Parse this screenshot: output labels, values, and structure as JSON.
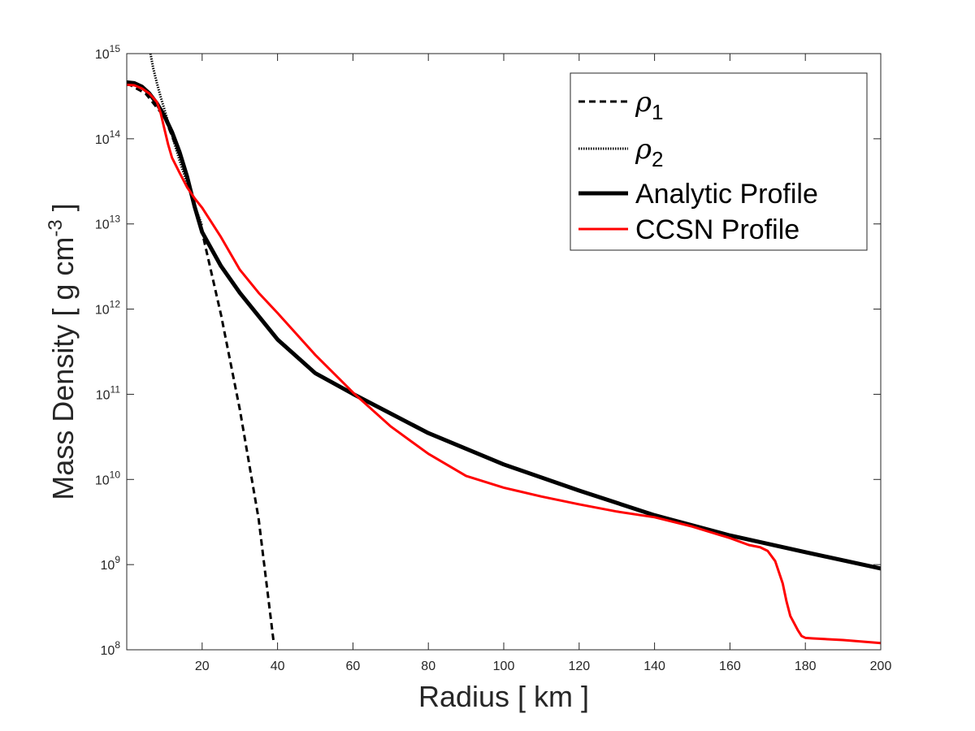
{
  "chart_data": {
    "type": "line",
    "title": "",
    "xlabel": "Radius [ km ]",
    "ylabel": "Mass Density [ g cm",
    "ylabel_sup": "-3",
    "ylabel_end": " ]",
    "xlim": [
      0,
      200
    ],
    "ylim": [
      100000000,
      1000000000000000
    ],
    "yscale": "log",
    "grid": false,
    "legend_position": "top-right",
    "x_ticks": [
      20,
      40,
      60,
      80,
      100,
      120,
      140,
      160,
      180,
      200
    ],
    "x_tick_labels": [
      "20",
      "40",
      "60",
      "80",
      "100",
      "120",
      "140",
      "160",
      "180",
      "200"
    ],
    "y_ticks": [
      {
        "base": "10",
        "exp": "8",
        "value": 100000000
      },
      {
        "base": "10",
        "exp": "9",
        "value": 1000000000
      },
      {
        "base": "10",
        "exp": "10",
        "value": 10000000000
      },
      {
        "base": "10",
        "exp": "11",
        "value": 100000000000
      },
      {
        "base": "10",
        "exp": "12",
        "value": 1000000000000
      },
      {
        "base": "10",
        "exp": "13",
        "value": 10000000000000
      },
      {
        "base": "10",
        "exp": "14",
        "value": 100000000000000
      },
      {
        "base": "10",
        "exp": "15",
        "value": 1000000000000000
      }
    ],
    "series": [
      {
        "name": "ρ",
        "name_sub": "1",
        "color": "#000000",
        "style": "dashed",
        "width": 3,
        "x": [
          0,
          5,
          10,
          15,
          20,
          25,
          30,
          35,
          39
        ],
        "y": [
          450000000000000.0,
          340000000000000.0,
          180000000000000.0,
          50000000000000.0,
          8000000000000.0,
          860000000000.0,
          66000000000.0,
          3400000000.0,
          120000000.0
        ]
      },
      {
        "name": "ρ",
        "name_sub": "2",
        "color": "#000000",
        "style": "dotted",
        "width": 3,
        "x": [
          6.3,
          7,
          8,
          9,
          10,
          12,
          14,
          16,
          18,
          20
        ],
        "y": [
          1000000000000000.0,
          680000000000000.0,
          450000000000000.0,
          310000000000000.0,
          220000000000000.0,
          110000000000000.0,
          56000000000000.0,
          30000000000000.0,
          16500000000000.0,
          9500000000000.0
        ]
      },
      {
        "name": "Analytic Profile",
        "color": "#000000",
        "style": "solid",
        "width": 5,
        "x": [
          0,
          2,
          4,
          6,
          8,
          10,
          12,
          14,
          16,
          18,
          20,
          25,
          30,
          40,
          50,
          60,
          80,
          100,
          120,
          140,
          160,
          180,
          200
        ],
        "y": [
          460000000000000.0,
          450000000000000.0,
          410000000000000.0,
          340000000000000.0,
          260000000000000.0,
          185000000000000.0,
          120000000000000.0,
          70000000000000.0,
          36000000000000.0,
          16000000000000.0,
          8000000000000.0,
          3200000000000.0,
          1550000000000.0,
          440000000000.0,
          177000000000.0,
          101000000000.0,
          35000000000.0,
          15000000000.0,
          7400000000.0,
          3800000000.0,
          2200000000.0,
          1400000000.0,
          900000000.0
        ]
      },
      {
        "name": "CCSN Profile",
        "color": "#ff0000",
        "style": "solid",
        "width": 3,
        "x": [
          0,
          2,
          4,
          6,
          8,
          9,
          10,
          11,
          12,
          14,
          16,
          18,
          20,
          25,
          30,
          35,
          40,
          50,
          60,
          70,
          80,
          90,
          100,
          110,
          120,
          130,
          140,
          150,
          160,
          165,
          168,
          170,
          172,
          174,
          175,
          176,
          178,
          179,
          180,
          182,
          190,
          200
        ],
        "y": [
          430000000000000.0,
          425000000000000.0,
          390000000000000.0,
          340000000000000.0,
          270000000000000.0,
          200000000000000.0,
          130000000000000.0,
          85000000000000.0,
          60000000000000.0,
          40000000000000.0,
          27000000000000.0,
          20000000000000.0,
          15500000000000.0,
          7000000000000.0,
          2900000000000.0,
          1550000000000.0,
          900000000000.0,
          290000000000.0,
          105000000000.0,
          42000000000.0,
          20000000000.0,
          11000000000.0,
          8000000000.0,
          6300000000.0,
          5100000000.0,
          4200000000.0,
          3600000000.0,
          2800000000.0,
          2050000000.0,
          1700000000.0,
          1600000000.0,
          1450000000.0,
          1100000000.0,
          600000000.0,
          370000000.0,
          250000000.0,
          170000000.0,
          145000000.0,
          138000000.0,
          136000000.0,
          130000000.0,
          120000000.0
        ]
      }
    ]
  }
}
